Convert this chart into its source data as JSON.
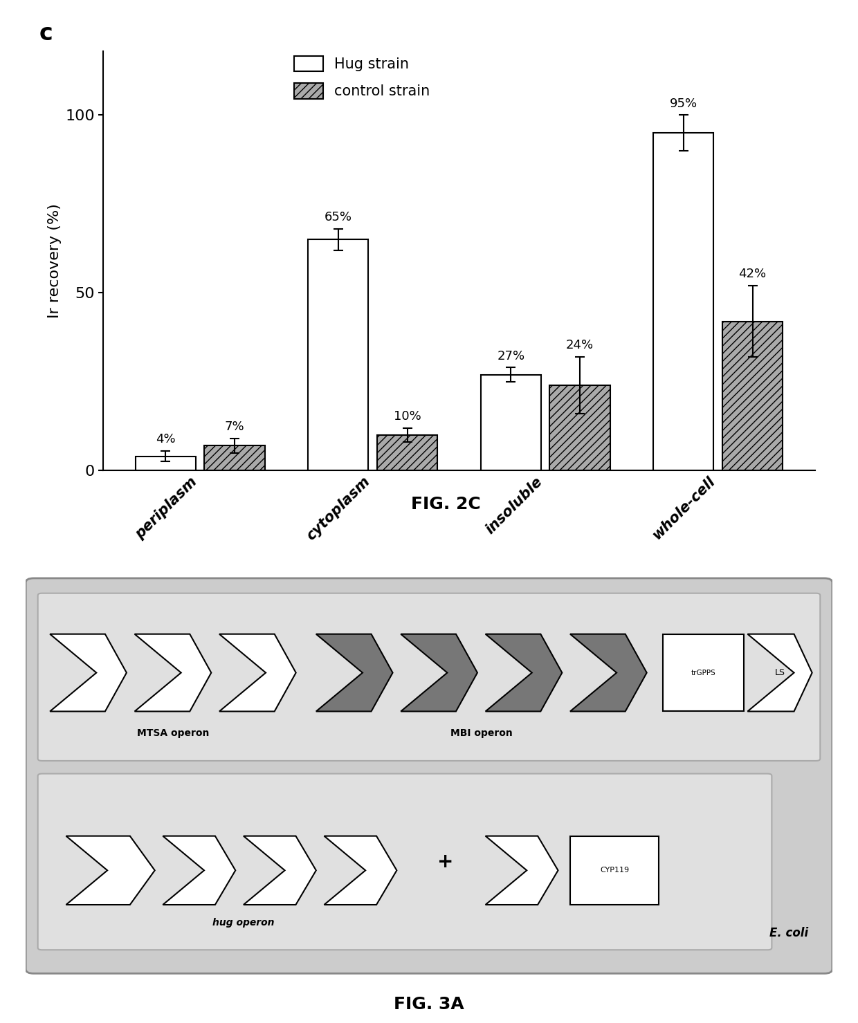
{
  "fig2c": {
    "title_label": "c",
    "ylabel": "Ir recovery (%)",
    "categories": [
      "periplasm",
      "cytoplasm",
      "insoluble",
      "whole-cell"
    ],
    "hug_values": [
      4,
      65,
      27,
      95
    ],
    "ctrl_values": [
      7,
      10,
      24,
      42
    ],
    "hug_errors": [
      1.5,
      3,
      2,
      5
    ],
    "ctrl_errors": [
      2,
      2,
      8,
      10
    ],
    "hug_color": "#ffffff",
    "ctrl_color": "#aaaaaa",
    "ctrl_hatch": "///",
    "bar_edge": "#000000",
    "ylim": [
      0,
      118
    ],
    "yticks": [
      0,
      50,
      100
    ],
    "figcaption": "FIG. 2C"
  },
  "fig3a": {
    "figcaption": "FIG. 3A",
    "outer_facecolor": "#cccccc",
    "outer_edgecolor": "#888888",
    "inner_facecolor": "#e0e0e0",
    "inner_edgecolor": "#aaaaaa",
    "white_arrow_fc": "#ffffff",
    "dark_arrow_fc": "#777777",
    "ecoli_label": "E. coli",
    "mtsa_label": "MTSA operon",
    "mbi_label": "MBI operon",
    "hug_label": "hug operon",
    "trgpps_label": "trGPPS",
    "ls_label": "LS",
    "cyp_label": "CYP119"
  }
}
